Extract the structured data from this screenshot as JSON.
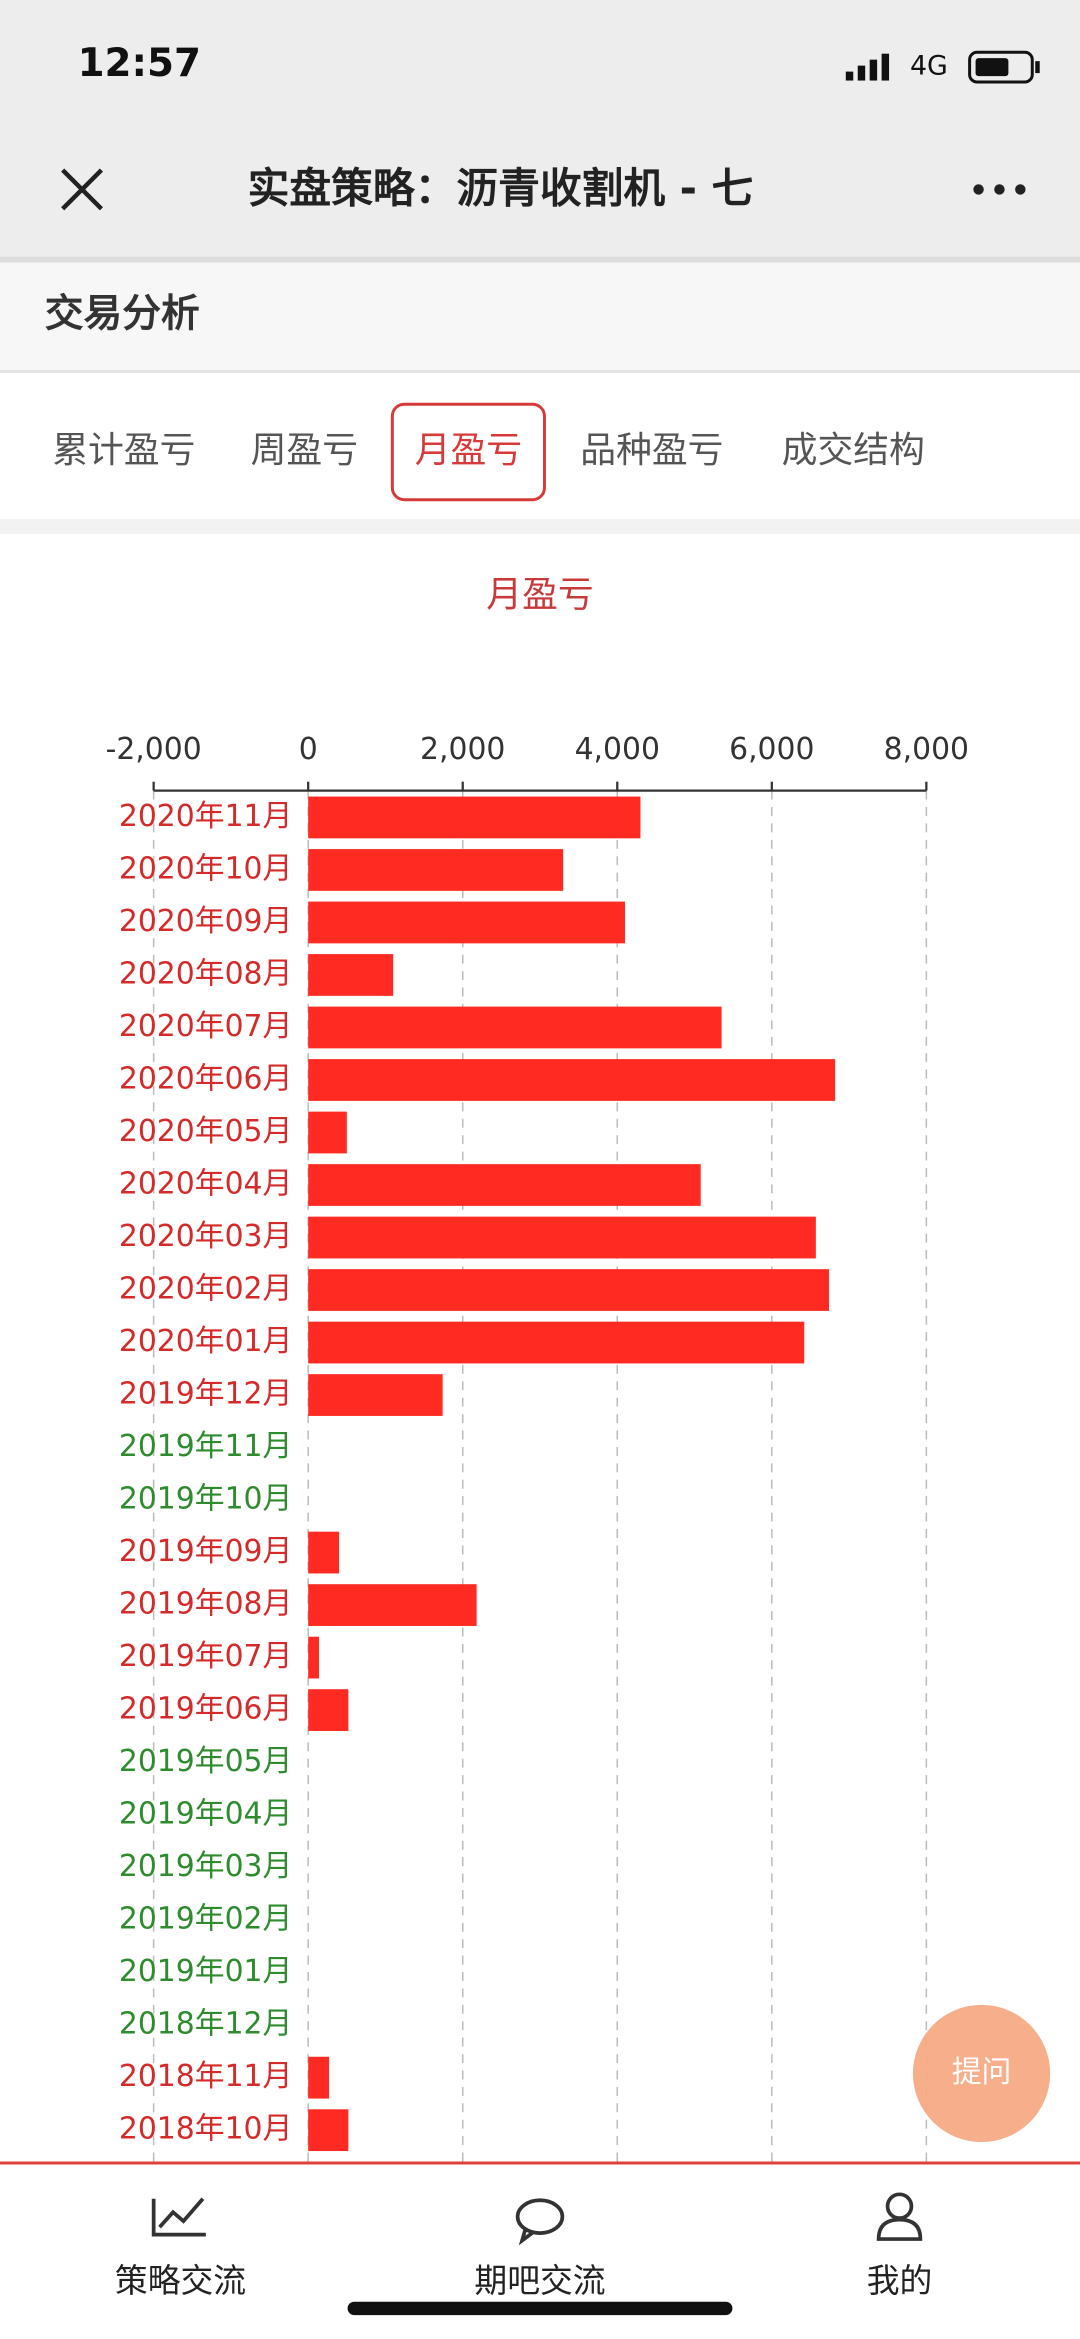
{
  "status_bar": {
    "time": "12:57",
    "network": "4G"
  },
  "nav_bar": {
    "title": "实盘策略：沥青收割机 - 七"
  },
  "section": {
    "title": "交易分析"
  },
  "tabs": {
    "items": [
      "累计盈亏",
      "周盈亏",
      "月盈亏",
      "品种盈亏",
      "成交结构"
    ],
    "active": 2
  },
  "chart_data": {
    "type": "barh",
    "title": "月盈亏",
    "categories": [
      "2020年11月",
      "2020年10月",
      "2020年09月",
      "2020年08月",
      "2020年07月",
      "2020年06月",
      "2020年05月",
      "2020年04月",
      "2020年03月",
      "2020年02月",
      "2020年01月",
      "2019年12月",
      "2019年11月",
      "2019年10月",
      "2019年09月",
      "2019年08月",
      "2019年07月",
      "2019年06月",
      "2019年05月",
      "2019年04月",
      "2019年03月",
      "2019年02月",
      "2019年01月",
      "2018年12月",
      "2018年11月",
      "2018年10月"
    ],
    "values": [
      4300,
      3300,
      4100,
      1100,
      5350,
      6820,
      500,
      5080,
      6570,
      6740,
      6420,
      1740,
      0,
      0,
      400,
      2180,
      140,
      520,
      0,
      0,
      0,
      0,
      0,
      0,
      270,
      520
    ],
    "label_colors": [
      "#d42a2a",
      "#d42a2a",
      "#d42a2a",
      "#d42a2a",
      "#d42a2a",
      "#d42a2a",
      "#d42a2a",
      "#d42a2a",
      "#d42a2a",
      "#d42a2a",
      "#d42a2a",
      "#d42a2a",
      "#2e8b2e",
      "#2e8b2e",
      "#d42a2a",
      "#d42a2a",
      "#d42a2a",
      "#d42a2a",
      "#2e8b2e",
      "#2e8b2e",
      "#2e8b2e",
      "#2e8b2e",
      "#2e8b2e",
      "#2e8b2e",
      "#d42a2a",
      "#d42a2a"
    ],
    "color": "#ff2a22",
    "xlim": [
      -2000,
      8000
    ],
    "xticks": [
      {
        "value": -2000,
        "label": "-2,000"
      },
      0,
      {
        "value": 2000,
        "label": "2,000"
      },
      {
        "value": 4000,
        "label": "4,000"
      },
      {
        "value": 6000,
        "label": "6,000"
      },
      {
        "value": 8000,
        "label": "8,000"
      }
    ],
    "grid": true
  },
  "help_button": {
    "label": "提问"
  },
  "bottom_nav": {
    "items": [
      "策略交流",
      "期吧交流",
      "我的"
    ]
  }
}
